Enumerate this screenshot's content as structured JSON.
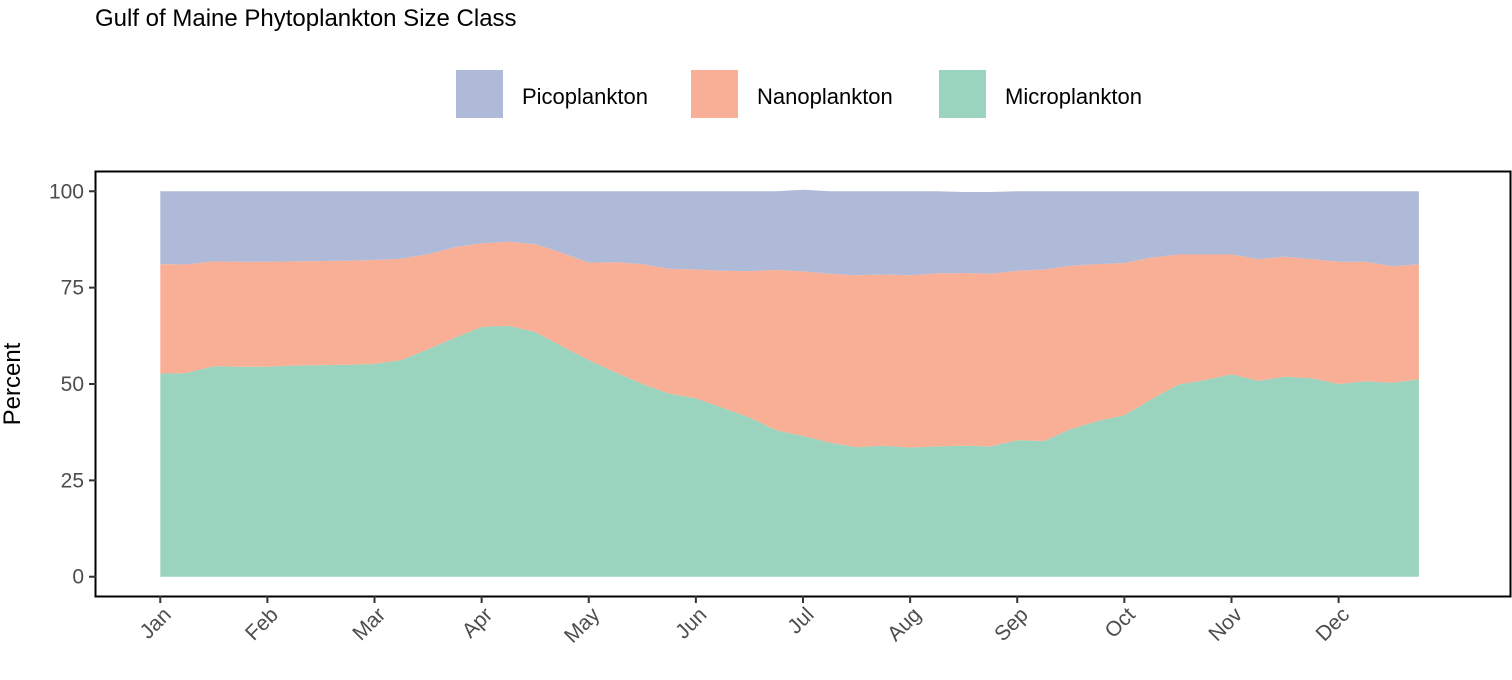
{
  "chart_data": {
    "type": "area",
    "stacked": true,
    "title": "Gulf of Maine Phytoplankton Size Class",
    "xlabel": "",
    "ylabel": "Percent",
    "ylim": [
      -5,
      105
    ],
    "xlim": [
      -0.6,
      12.6
    ],
    "yticks": [
      0,
      25,
      50,
      75,
      100
    ],
    "month_labels": [
      "Jan",
      "Feb",
      "Mar",
      "Apr",
      "May",
      "Jun",
      "Jul",
      "Aug",
      "Sep",
      "Oct",
      "Nov",
      "Dec"
    ],
    "legend_position": "top",
    "grid": false,
    "x": [
      0,
      0.23,
      0.5,
      0.75,
      1,
      1.25,
      1.5,
      1.75,
      2,
      2.25,
      2.5,
      2.75,
      3,
      3.25,
      3.5,
      3.75,
      4,
      4.25,
      4.5,
      4.75,
      5,
      5.25,
      5.5,
      5.75,
      6,
      6.25,
      6.5,
      6.75,
      7,
      7.25,
      7.5,
      7.75,
      8,
      8.25,
      8.5,
      8.75,
      9,
      9.25,
      9.5,
      9.75,
      10,
      10.25,
      10.5,
      10.75,
      11,
      11.25,
      11.5,
      11.75
    ],
    "series": [
      {
        "name": "Microplankton",
        "color": "#9AD4BF",
        "values": [
          52.7,
          52.8,
          54.6,
          54.5,
          54.5,
          54.8,
          54.9,
          55.0,
          55.2,
          56.2,
          59.0,
          62.0,
          64.8,
          65.1,
          63.5,
          59.8,
          56.2,
          53.0,
          50.0,
          47.5,
          46.3,
          43.8,
          41.3,
          38.0,
          36.5,
          34.8,
          33.6,
          34.0,
          33.5,
          33.8,
          34.0,
          33.8,
          35.4,
          35.2,
          38.3,
          40.4,
          41.9,
          46.0,
          49.8,
          51.0,
          52.5,
          50.8,
          51.9,
          51.5,
          50.0,
          50.7,
          50.3,
          51.2
        ]
      },
      {
        "name": "Nanoplankton",
        "color": "#F9AF95",
        "values": [
          28.4,
          28.2,
          27.2,
          27.2,
          27.2,
          27.0,
          27.0,
          27.0,
          27.0,
          26.3,
          24.7,
          23.5,
          21.7,
          21.8,
          22.8,
          24.2,
          25.3,
          28.6,
          31.1,
          32.4,
          33.4,
          35.6,
          38.0,
          41.6,
          42.7,
          43.8,
          44.6,
          44.4,
          44.7,
          44.9,
          44.8,
          44.8,
          44.0,
          44.5,
          42.4,
          40.7,
          39.5,
          36.8,
          33.8,
          32.6,
          31.1,
          31.6,
          31.1,
          30.9,
          31.7,
          31.0,
          30.3,
          29.8
        ]
      },
      {
        "name": "Picoplankton",
        "color": "#AFBAD8",
        "values": [
          18.9,
          19.0,
          18.2,
          18.3,
          18.3,
          18.2,
          18.1,
          18.0,
          17.8,
          17.5,
          16.3,
          14.5,
          13.5,
          13.1,
          13.7,
          16.0,
          18.5,
          18.4,
          18.9,
          20.1,
          20.3,
          20.6,
          20.7,
          20.4,
          21.2,
          21.4,
          21.8,
          21.6,
          21.8,
          21.3,
          21.0,
          21.2,
          20.6,
          20.3,
          19.3,
          18.9,
          18.6,
          17.2,
          16.4,
          16.4,
          16.4,
          17.6,
          17.0,
          17.6,
          18.3,
          18.3,
          19.4,
          19.0
        ]
      }
    ],
    "legend_order": [
      "Picoplankton",
      "Nanoplankton",
      "Microplankton"
    ]
  }
}
